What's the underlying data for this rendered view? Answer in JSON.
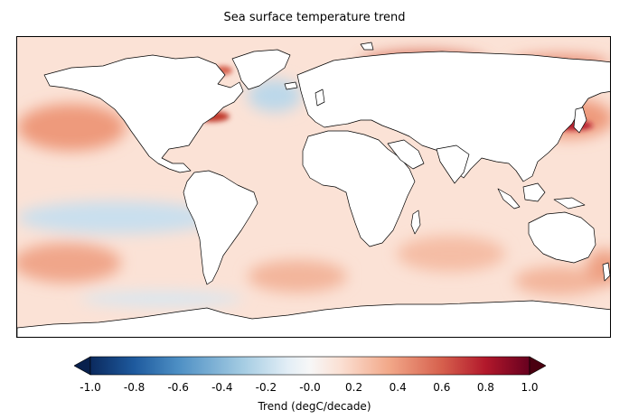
{
  "title": "Sea surface temperature trend",
  "colorbar": {
    "label": "Trend (degC/decade)",
    "ticks": [
      "-1.0",
      "-0.8",
      "-0.6",
      "-0.4",
      "-0.2",
      "-0.0",
      "0.2",
      "0.4",
      "0.6",
      "0.8",
      "1.0"
    ],
    "range": [
      -1.0,
      1.0
    ],
    "colormap": "RdBu_r",
    "extend": "both",
    "colors": [
      "#0b2a5e",
      "#1e5a9e",
      "#4d8fc4",
      "#a6cde3",
      "#e3eef6",
      "#f7f7f7",
      "#fbe0d3",
      "#f2a889",
      "#d6604d",
      "#b2182b",
      "#5c0114"
    ]
  },
  "map_data": {
    "projection": "PlateCarree",
    "land_color": "#ffffff",
    "coastline_color": "#000000",
    "ocean_base_color": "#fbe2d6"
  }
}
